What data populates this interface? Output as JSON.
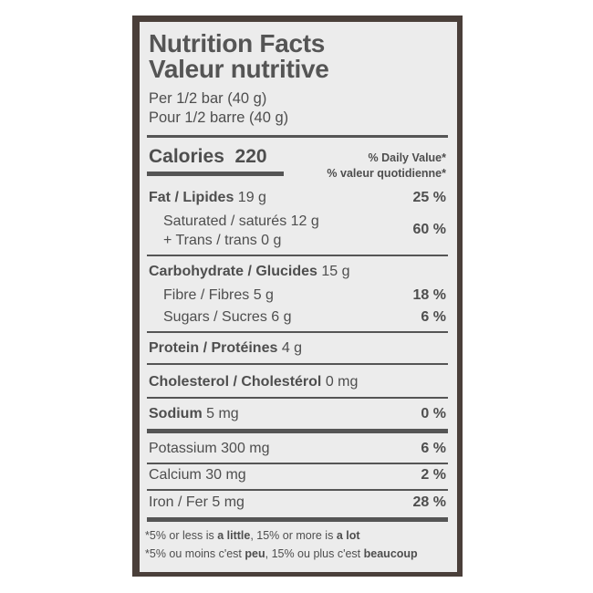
{
  "title_en": "Nutrition Facts",
  "title_fr": "Valeur nutritive",
  "serving_en": "Per 1/2 bar (40 g)",
  "serving_fr": "Pour 1/2 barre (40 g)",
  "calories_label": "Calories",
  "calories_value": "220",
  "dv_en": "% Daily Value*",
  "dv_fr": "% valeur quotidienne*",
  "nutrients": [
    {
      "label": "Fat / Lipides",
      "amount": "19 g",
      "dv": "25 %"
    },
    {
      "label": "Saturated / saturés 12 g",
      "amount": "",
      "dv": "60 %"
    },
    {
      "label": "+ Trans / trans 0 g",
      "amount": "",
      "dv": ""
    },
    {
      "label": "Carbohydrate / Glucides",
      "amount": "15 g",
      "dv": ""
    },
    {
      "label": "Fibre / Fibres 5 g",
      "amount": "",
      "dv": "18 %"
    },
    {
      "label": "Sugars / Sucres 6 g",
      "amount": "",
      "dv": "6 %"
    },
    {
      "label": "Protein / Protéines",
      "amount": "4 g",
      "dv": ""
    },
    {
      "label": "Cholesterol / Cholestérol",
      "amount": "0 mg",
      "dv": ""
    },
    {
      "label": "Sodium",
      "amount": "5 mg",
      "dv": "0 %"
    },
    {
      "label": "Potassium 300 mg",
      "amount": "",
      "dv": "6 %"
    },
    {
      "label": "Calcium 30 mg",
      "amount": "",
      "dv": "2 %"
    },
    {
      "label": "Iron / Fer 5 mg",
      "amount": "",
      "dv": "28 %"
    }
  ],
  "footnote_en": {
    "a": "*5% or less is ",
    "b": "a little",
    "c": ", 15% or more is ",
    "d": "a lot"
  },
  "footnote_fr": {
    "a": "*5% ou moins c'est ",
    "b": "peu",
    "c": ", 15% ou plus c'est ",
    "d": "beaucoup"
  }
}
